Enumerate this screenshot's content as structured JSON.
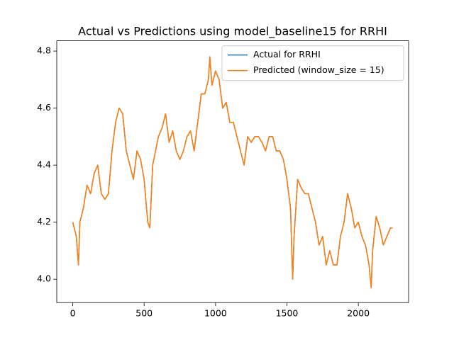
{
  "chart_data": {
    "type": "line",
    "title": "Actual vs Predictions using model_baseline15 for RRHI",
    "x": [
      0,
      25,
      40,
      50,
      75,
      100,
      125,
      150,
      175,
      200,
      225,
      250,
      275,
      300,
      325,
      350,
      375,
      400,
      425,
      450,
      475,
      500,
      525,
      540,
      560,
      600,
      625,
      650,
      675,
      700,
      725,
      750,
      775,
      800,
      825,
      850,
      875,
      900,
      925,
      950,
      960,
      975,
      1000,
      1025,
      1050,
      1075,
      1100,
      1125,
      1150,
      1175,
      1200,
      1225,
      1250,
      1275,
      1300,
      1325,
      1350,
      1375,
      1400,
      1425,
      1450,
      1475,
      1500,
      1525,
      1540,
      1550,
      1575,
      1600,
      1625,
      1650,
      1675,
      1700,
      1725,
      1750,
      1775,
      1800,
      1825,
      1850,
      1875,
      1900,
      1925,
      1950,
      1975,
      2000,
      2025,
      2050,
      2075,
      2090,
      2100,
      2125,
      2150,
      2175,
      2200,
      2225,
      2240
    ],
    "series": [
      {
        "name": "Actual for RRHI",
        "color": "#1f77b4",
        "values": [
          4.2,
          4.15,
          4.05,
          4.2,
          4.25,
          4.33,
          4.3,
          4.37,
          4.4,
          4.3,
          4.28,
          4.3,
          4.45,
          4.55,
          4.6,
          4.58,
          4.45,
          4.4,
          4.35,
          4.45,
          4.42,
          4.35,
          4.2,
          4.18,
          4.4,
          4.5,
          4.53,
          4.58,
          4.48,
          4.52,
          4.45,
          4.42,
          4.45,
          4.5,
          4.52,
          4.45,
          4.55,
          4.65,
          4.65,
          4.7,
          4.78,
          4.68,
          4.73,
          4.7,
          4.6,
          4.62,
          4.55,
          4.55,
          4.5,
          4.45,
          4.4,
          4.5,
          4.48,
          4.5,
          4.5,
          4.48,
          4.45,
          4.5,
          4.5,
          4.45,
          4.45,
          4.42,
          4.35,
          4.25,
          4.0,
          4.15,
          4.35,
          4.32,
          4.3,
          4.3,
          4.25,
          4.2,
          4.12,
          4.15,
          4.05,
          4.1,
          4.05,
          4.05,
          4.15,
          4.2,
          4.3,
          4.25,
          4.18,
          4.2,
          4.15,
          4.12,
          4.05,
          3.97,
          4.1,
          4.22,
          4.18,
          4.12,
          4.15,
          4.18,
          4.18
        ]
      },
      {
        "name": "Predicted (window_size = 15)",
        "color": "#ff7f0e",
        "values": [
          4.2,
          4.15,
          4.05,
          4.2,
          4.25,
          4.33,
          4.3,
          4.37,
          4.4,
          4.3,
          4.28,
          4.3,
          4.45,
          4.55,
          4.6,
          4.58,
          4.45,
          4.4,
          4.35,
          4.45,
          4.42,
          4.35,
          4.2,
          4.18,
          4.4,
          4.5,
          4.53,
          4.58,
          4.48,
          4.52,
          4.45,
          4.42,
          4.45,
          4.5,
          4.52,
          4.45,
          4.55,
          4.65,
          4.65,
          4.7,
          4.78,
          4.68,
          4.73,
          4.7,
          4.6,
          4.62,
          4.55,
          4.55,
          4.5,
          4.45,
          4.4,
          4.5,
          4.48,
          4.5,
          4.5,
          4.48,
          4.45,
          4.5,
          4.5,
          4.45,
          4.45,
          4.42,
          4.35,
          4.25,
          4.0,
          4.15,
          4.35,
          4.32,
          4.3,
          4.3,
          4.25,
          4.2,
          4.12,
          4.15,
          4.05,
          4.1,
          4.05,
          4.05,
          4.15,
          4.2,
          4.3,
          4.25,
          4.18,
          4.2,
          4.15,
          4.12,
          4.05,
          3.97,
          4.1,
          4.22,
          4.18,
          4.12,
          4.15,
          4.18,
          4.18
        ]
      }
    ],
    "xlim": [
      -112,
      2352
    ],
    "xticks": [
      0,
      500,
      1000,
      1500,
      2000
    ],
    "ylim": [
      3.918,
      4.836
    ],
    "yticks": [
      {
        "value": 4,
        "label": "4.0"
      },
      4.2,
      4.4,
      4.6,
      4.8
    ],
    "legend": "upper right",
    "grid": false
  }
}
